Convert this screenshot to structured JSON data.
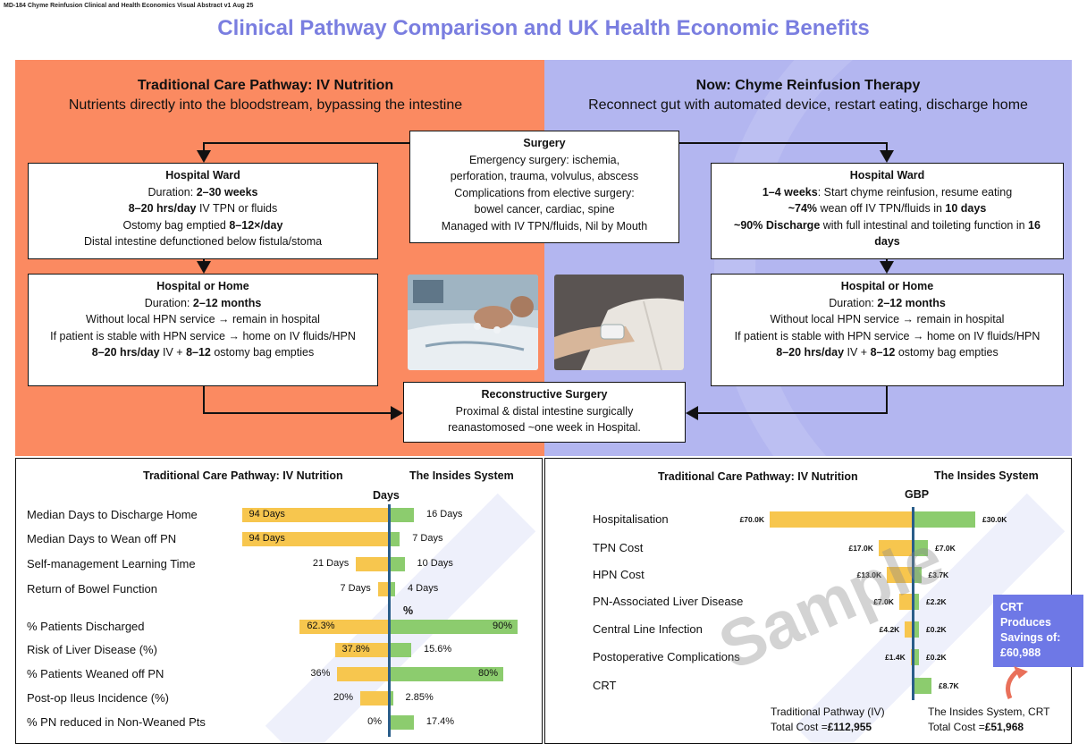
{
  "doc_id": "MD-184 Chyme Reinfusion Clinical and Health Economics Visual Abstract v1 Aug 25",
  "title": "Clinical Pathway Comparison and UK Health Economic Benefits",
  "left_panel": {
    "title": "Traditional Care Pathway: IV Nutrition",
    "subtitle": "Nutrients directly into the bloodstream, bypassing the intestine",
    "ward": {
      "title": "Hospital Ward",
      "l1a": "Duration: ",
      "l1b": "2–30 weeks",
      "l2a": "8–20 hrs/day",
      "l2b": " IV TPN or fluids",
      "l3a": "Ostomy bag emptied ",
      "l3b": "8–12×/day",
      "l4": "Distal intestine defunctioned below fistula/stoma"
    },
    "home": {
      "title": "Hospital or Home",
      "l1a": "Duration: ",
      "l1b": "2–12 months",
      "l2": "Without local HPN service → remain in hospital",
      "l3": "If patient is stable with HPN service → home on IV fluids/HPN",
      "l4a": "8–20 hrs/day",
      "l4b": " IV + ",
      "l4c": "8–12",
      "l4d": " ostomy bag empties"
    }
  },
  "right_panel": {
    "title": "Now: Chyme Reinfusion Therapy",
    "subtitle": "Reconnect gut with automated device, restart eating, discharge home",
    "ward": {
      "title": "Hospital Ward",
      "l1a": "1–4 weeks",
      "l1b": ": Start chyme reinfusion, resume eating",
      "l2a": "~74%",
      "l2b": " wean off IV TPN/fluids in ",
      "l2c": "10 days",
      "l3a": "~90% Discharge",
      "l3b": " with full intestinal and toileting function in ",
      "l3c": "16 days"
    },
    "home": {
      "title": "Hospital or Home",
      "l1a": "Duration: ",
      "l1b": "2–12 months",
      "l2": "Without local HPN service → remain in hospital",
      "l3": "If patient is stable with HPN service → home on IV fluids/HPN",
      "l4a": "8–20 hrs/day",
      "l4b": " IV + ",
      "l4c": "8–12",
      "l4d": " ostomy bag empties"
    }
  },
  "surgery": {
    "title": "Surgery",
    "lines": [
      "Emergency surgery: ischemia,",
      "perforation, trauma, volvulus, abscess",
      "Complications from elective surgery:",
      "bowel cancer, cardiac, spine",
      "Managed with IV TPN/fluids, Nil by Mouth"
    ]
  },
  "reconstructive": {
    "title": "Reconstructive Surgery",
    "lines": [
      "Proximal & distal intestine surgically",
      "reanastomosed ~one week in Hospital."
    ]
  },
  "colors": {
    "orange": "#fb8a61",
    "lavender": "#b3b6f0",
    "title": "#7a7ee0",
    "yellow_bar": "#f7c64e",
    "green_bar": "#8ccc6e",
    "axis": "#2a5d8a",
    "callout": "#6e78e6"
  },
  "chart_data": [
    {
      "type": "bar",
      "orientation": "diverging-horizontal",
      "header_left": "Traditional Care Pathway: IV Nutrition",
      "header_right": "The Insides System",
      "sections": [
        {
          "title": "Days",
          "rows": [
            {
              "label": "Median Days to Discharge Home",
              "traditional": 94,
              "insides": 16,
              "traditional_label": "94 Days",
              "insides_label": "16 Days"
            },
            {
              "label": "Median Days to Wean off PN",
              "traditional": 94,
              "insides": 7,
              "traditional_label": "94 Days",
              "insides_label": "7 Days"
            },
            {
              "label": "Self-management Learning Time",
              "traditional": 21,
              "insides": 10,
              "traditional_label": "21 Days",
              "insides_label": "10 Days"
            },
            {
              "label": "Return of Bowel Function",
              "traditional": 7,
              "insides": 4,
              "traditional_label": "7 Days",
              "insides_label": "4 Days"
            }
          ]
        },
        {
          "title": "%",
          "rows": [
            {
              "label": "% Patients Discharged",
              "traditional": 62.3,
              "insides": 90,
              "traditional_label": "62.3%",
              "insides_label": "90%"
            },
            {
              "label": "Risk of Liver Disease (%)",
              "traditional": 37.8,
              "insides": 15.6,
              "traditional_label": "37.8%",
              "insides_label": "15.6%"
            },
            {
              "label": "% Patients Weaned off PN",
              "traditional": 36,
              "insides": 80,
              "traditional_label": "36%",
              "insides_label": "80%"
            },
            {
              "label": "Post-op Ileus Incidence (%)",
              "traditional": 20,
              "insides": 2.85,
              "traditional_label": "20%",
              "insides_label": "2.85%"
            },
            {
              "label": "% PN reduced in Non-Weaned Pts",
              "traditional": 0,
              "insides": 17.4,
              "traditional_label": "0%",
              "insides_label": "17.4%"
            }
          ]
        }
      ]
    },
    {
      "type": "bar",
      "orientation": "diverging-horizontal",
      "header_left": "Traditional Care Pathway: IV Nutrition",
      "header_right": "The Insides System",
      "unit": "GBP",
      "rows": [
        {
          "label": "Hospitalisation",
          "traditional": 70.0,
          "insides": 30.0,
          "traditional_label": "£70.0K",
          "insides_label": "£30.0K"
        },
        {
          "label": "TPN Cost",
          "traditional": 17.0,
          "insides": 7.0,
          "traditional_label": "£17.0K",
          "insides_label": "£7.0K"
        },
        {
          "label": "HPN Cost",
          "traditional": 13.0,
          "insides": 3.7,
          "traditional_label": "£13.0K",
          "insides_label": "£3.7K"
        },
        {
          "label": "PN-Associated Liver Disease",
          "traditional": 7.0,
          "insides": 2.2,
          "traditional_label": "£7.0K",
          "insides_label": "£2.2K"
        },
        {
          "label": "Central Line Infection",
          "traditional": 4.2,
          "insides": 0.2,
          "traditional_label": "£4.2K",
          "insides_label": "£0.2K"
        },
        {
          "label": "Postoperative Complications",
          "traditional": 1.4,
          "insides": 0.2,
          "traditional_label": "£1.4K",
          "insides_label": "£0.2K"
        },
        {
          "label": "CRT",
          "traditional": 0,
          "insides": 8.7,
          "traditional_label": "",
          "insides_label": "£8.7K"
        }
      ],
      "totals": {
        "traditional_a": "Traditional Pathway (IV)",
        "traditional_b": "Total Cost =",
        "traditional_value": "£112,955",
        "insides_a": "The Insides System, CRT",
        "insides_b": "Total Cost =",
        "insides_value": "£51,968"
      },
      "callout": {
        "l1": "CRT",
        "l2": "Produces",
        "l3": "Savings of:",
        "value": "£60,988"
      }
    }
  ],
  "watermark": "Sample"
}
